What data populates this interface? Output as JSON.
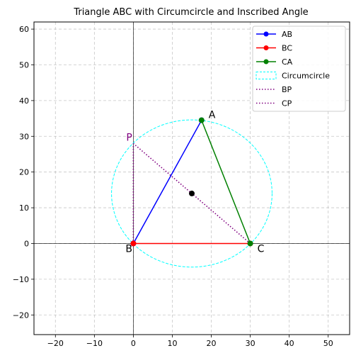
{
  "chart_data": {
    "type": "line",
    "title": "Triangle ABC with Circumcircle and Inscribed Angle",
    "xlabel": "",
    "ylabel": "",
    "xlim": [
      -25.5,
      55.5
    ],
    "ylim": [
      -25.5,
      62
    ],
    "xticks": [
      -20,
      -10,
      0,
      10,
      20,
      30,
      40,
      50
    ],
    "yticks": [
      -20,
      -10,
      0,
      10,
      20,
      30,
      40,
      50,
      60
    ],
    "xtick_labels": [
      "−20",
      "−10",
      "0",
      "10",
      "20",
      "30",
      "40",
      "50"
    ],
    "ytick_labels": [
      "−20",
      "−10",
      "0",
      "10",
      "20",
      "30",
      "40",
      "50",
      "60"
    ],
    "grid": true,
    "legend_position": "top-right",
    "points": {
      "A": {
        "label": "A",
        "x": 17.5,
        "y": 34.5,
        "color": "#008000"
      },
      "B": {
        "label": "B",
        "x": 0,
        "y": 0,
        "color": "#ff0000"
      },
      "C": {
        "label": "C",
        "x": 30,
        "y": 0,
        "color": "#008000"
      },
      "P": {
        "label": "P",
        "x": 0,
        "y": 28,
        "color": "#800080"
      },
      "O": {
        "x": 15,
        "y": 14,
        "color": "#000000"
      }
    },
    "series": [
      {
        "name": "AB",
        "color": "#0000ff",
        "style": "solid",
        "marker": true,
        "x": [
          0,
          17.5
        ],
        "y": [
          0,
          34.5
        ]
      },
      {
        "name": "BC",
        "color": "#ff0000",
        "style": "solid",
        "marker": true,
        "x": [
          0,
          30
        ],
        "y": [
          0,
          0
        ]
      },
      {
        "name": "CA",
        "color": "#008000",
        "style": "solid",
        "marker": true,
        "x": [
          30,
          17.5
        ],
        "y": [
          0,
          34.5
        ]
      },
      {
        "name": "Circumcircle",
        "color": "#00ffff",
        "style": "dashed",
        "marker": false,
        "center": [
          15,
          14
        ],
        "radius": 20.6
      },
      {
        "name": "BP",
        "color": "#800080",
        "style": "dotted",
        "marker": false,
        "x": [
          0,
          0
        ],
        "y": [
          0,
          28
        ]
      },
      {
        "name": "CP",
        "color": "#800080",
        "style": "dotted",
        "marker": false,
        "x": [
          30,
          0
        ],
        "y": [
          0,
          28
        ]
      }
    ]
  }
}
